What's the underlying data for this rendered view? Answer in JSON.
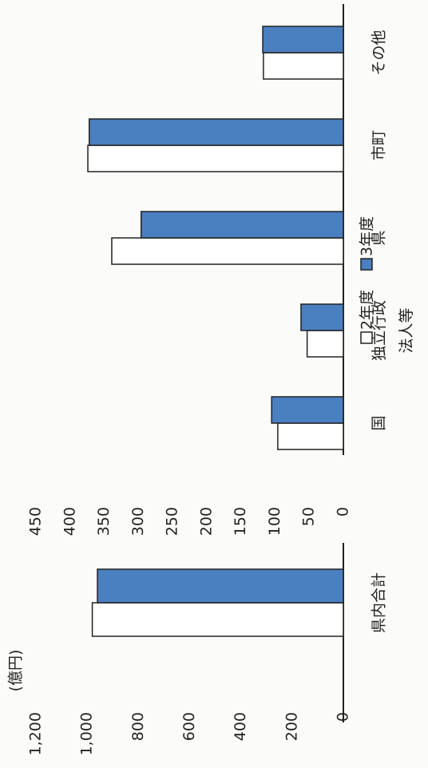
{
  "unit": "(億円)",
  "chart_data": [
    {
      "type": "bar",
      "categories": [
        "県内合計"
      ],
      "series": [
        {
          "name": "2年度",
          "color": "#ffffff",
          "values": [
            980
          ]
        },
        {
          "name": "3年度",
          "color": "#4a7fc0",
          "values": [
            960
          ]
        }
      ],
      "ylim": [
        0,
        1200
      ],
      "yticks": [
        0,
        200,
        400,
        600,
        800,
        {
          "value": 1000,
          "label": "1,000"
        },
        {
          "value": 1200,
          "label": "1,200"
        }
      ]
    },
    {
      "type": "bar",
      "categories": [
        "国",
        "独立行政\n法人等",
        "県",
        "市町",
        "その他"
      ],
      "series": [
        {
          "name": "2年度",
          "color": "#ffffff",
          "values": [
            96,
            53,
            339,
            374,
            117
          ]
        },
        {
          "name": "3年度",
          "color": "#4a7fc0",
          "values": [
            105,
            62,
            296,
            372,
            118
          ]
        }
      ],
      "ylim": [
        0,
        450
      ],
      "yticks": [
        0,
        50,
        100,
        150,
        200,
        250,
        300,
        350,
        400,
        450
      ],
      "legend": "top"
    }
  ]
}
